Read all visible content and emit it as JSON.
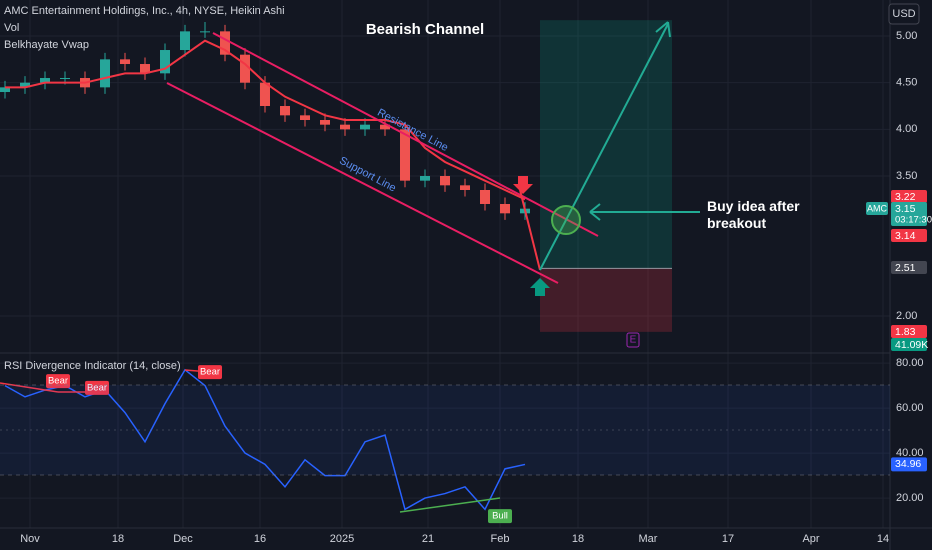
{
  "chart_data": [
    {
      "type": "candlestick",
      "title": "AMC Entertainment Holdings, Inc., 4h, NYSE, Heikin Ashi",
      "indicators": [
        "Vol",
        "Belkhayate Vwap"
      ],
      "currency": "USD",
      "x": [
        0.5,
        2.5,
        4.5,
        6.5,
        8.5,
        10.5,
        12.5,
        14.5,
        16.5,
        18.5,
        20.5,
        22.5,
        24.5,
        26.5,
        28.5,
        30.5,
        32.5,
        34.5,
        36.5,
        38.5,
        40.5,
        42.5,
        44.5,
        46.5,
        48.5,
        50.5,
        52.5
      ],
      "open": [
        4.4,
        4.45,
        4.5,
        4.55,
        4.55,
        4.45,
        4.75,
        4.7,
        4.6,
        4.85,
        5.05,
        5.05,
        4.8,
        4.5,
        4.25,
        4.15,
        4.1,
        4.05,
        4.0,
        4.05,
        4.0,
        3.45,
        3.5,
        3.4,
        3.35,
        3.2,
        3.1
      ],
      "high": [
        4.52,
        4.57,
        4.62,
        4.62,
        4.62,
        4.82,
        4.82,
        4.77,
        4.92,
        5.12,
        5.15,
        5.12,
        4.87,
        4.57,
        4.32,
        4.22,
        4.17,
        4.12,
        4.12,
        4.12,
        4.07,
        3.57,
        3.57,
        3.47,
        3.42,
        3.27,
        3.22
      ],
      "low": [
        4.33,
        4.38,
        4.43,
        4.48,
        4.38,
        4.38,
        4.63,
        4.53,
        4.53,
        4.78,
        4.98,
        4.73,
        4.43,
        4.18,
        4.08,
        4.03,
        3.98,
        3.93,
        3.93,
        3.93,
        3.38,
        3.38,
        3.33,
        3.28,
        3.13,
        3.03,
        3.03
      ],
      "close": [
        4.45,
        4.5,
        4.55,
        4.55,
        4.45,
        4.75,
        4.7,
        4.6,
        4.85,
        5.05,
        5.05,
        4.8,
        4.5,
        4.25,
        4.15,
        4.1,
        4.05,
        4.0,
        4.05,
        4.0,
        3.45,
        3.5,
        3.4,
        3.35,
        3.2,
        3.1,
        3.15
      ],
      "up_color": "#26a69a",
      "down_color": "#ef5350",
      "series": [
        {
          "name": "Belkhayate Vwap",
          "color": "#f23645",
          "values": [
            4.45,
            4.45,
            4.5,
            4.5,
            4.5,
            4.55,
            4.6,
            4.6,
            4.65,
            4.8,
            4.95,
            4.85,
            4.7,
            4.5,
            4.35,
            4.25,
            4.15,
            4.1,
            4.1,
            4.1,
            4.05,
            3.8,
            3.65,
            3.55,
            3.45,
            3.35,
            3.25
          ]
        }
      ],
      "xlim": [
        0,
        89
      ],
      "xticks": [
        {
          "value": 3.0,
          "label": "Nov"
        },
        {
          "value": 11.8,
          "label": "18"
        },
        {
          "value": 18.3,
          "label": "Dec"
        },
        {
          "value": 26.0,
          "label": "16"
        },
        {
          "value": 34.2,
          "label": "2025"
        },
        {
          "value": 42.8,
          "label": "21"
        },
        {
          "value": 50.0,
          "label": "Feb"
        },
        {
          "value": 57.8,
          "label": "18"
        },
        {
          "value": 64.8,
          "label": "Mar"
        },
        {
          "value": 72.8,
          "label": "17"
        },
        {
          "value": 81.1,
          "label": "Apr"
        },
        {
          "value": 88.3,
          "label": "14"
        }
      ],
      "ylim": [
        1.614,
        5.386
      ],
      "yticks": [
        {
          "value": 5.0,
          "label": "5.00"
        },
        {
          "value": 4.5,
          "label": "4.50"
        },
        {
          "value": 4.0,
          "label": "4.00"
        },
        {
          "value": 3.5,
          "label": "3.50"
        },
        {
          "value": 2.0,
          "label": "2.00"
        }
      ],
      "price_tags": [
        {
          "value": 3.22,
          "color": "#f23645"
        },
        {
          "value": 3.15,
          "symbol": "AMC",
          "countdown": "03:17:30",
          "color": "#26a69a"
        },
        {
          "value": 3.14,
          "color": "#f23645"
        },
        {
          "value": 2.51,
          "color": "#434651"
        },
        {
          "value": 1.83,
          "color": "#f23645"
        },
        {
          "value": 41.09,
          "label": "41.09K",
          "color": "#089981"
        }
      ],
      "position": {
        "target": 5.17,
        "entry": 2.51,
        "stop": 1.83
      },
      "annotations": {
        "title": "Bearish Channel",
        "resistance": "Resistance Line",
        "support": "Support Line",
        "idea": "Buy idea after breakout",
        "event": "E"
      }
    },
    {
      "type": "line",
      "title": "RSI Divergence Indicator (14, close)",
      "x": [
        0.5,
        2.5,
        4.5,
        6.5,
        8.5,
        10.5,
        12.5,
        14.5,
        16.5,
        18.5,
        20.5,
        22.5,
        24.5,
        26.5,
        28.5,
        30.5,
        32.5,
        34.5,
        36.5,
        38.5,
        40.5,
        42.5,
        44.5,
        46.5,
        48.5,
        50.5,
        52.5
      ],
      "values": [
        70,
        65,
        68,
        70,
        65,
        68,
        58,
        45,
        62,
        77,
        70,
        52,
        40,
        35,
        25,
        37,
        30,
        30,
        45,
        48,
        15,
        20,
        22,
        25,
        15,
        33,
        34.96
      ],
      "color": "#2962ff",
      "ylim": [
        6.7,
        83.6
      ],
      "yticks": [
        {
          "value": 80,
          "label": "80.00"
        },
        {
          "value": 60,
          "label": "60.00"
        },
        {
          "value": 40,
          "label": "40.00"
        },
        {
          "value": 20,
          "label": "20.00"
        }
      ],
      "last_value": 34.96,
      "labels": [
        {
          "text": "Bear",
          "x": 5.8,
          "value": 72
        },
        {
          "text": "Bear",
          "x": 9.7,
          "value": 69
        },
        {
          "text": "Bear",
          "x": 21.0,
          "value": 76
        },
        {
          "text": "Bull",
          "x": 50.0,
          "value": 12
        }
      ]
    }
  ]
}
